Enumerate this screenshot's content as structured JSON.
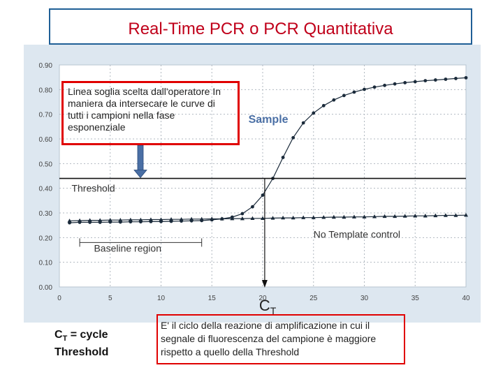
{
  "page": {
    "title": "Real-Time PCR o PCR Quantitativa",
    "annotation": "Linea soglia scelta dall'operatore In maniera da intersecare le curve di tutti i campioni nella fase esponenziale",
    "ct_definition": {
      "main": "C",
      "sub": "T",
      "rest": " = cycle",
      "line2": "Threshold"
    },
    "definition": "E' il ciclo della reazione di amplificazione in cui il segnale di fluorescenza del campione è maggiore rispetto a quello della Threshold"
  },
  "colors": {
    "title": "#c0001a",
    "title_border": "#1f5f96",
    "red_box": "#e00000",
    "plot_bg": "#ffffff",
    "outer_bg": "#dde7f0",
    "curve": "#1a2a3a",
    "sample_label": "#4a6fa5",
    "arrow": "#4a6fa5"
  },
  "chart_data": {
    "type": "line",
    "xlim": [
      0,
      40
    ],
    "ylim": [
      0,
      0.9
    ],
    "xticks": [
      "0",
      "5",
      "10",
      "15",
      "20",
      "25",
      "30",
      "35",
      "40"
    ],
    "yticks": [
      "0.00",
      "0.10",
      "0.20",
      "0.30",
      "0.40",
      "0.50",
      "0.60",
      "0.70",
      "0.80",
      "0.90"
    ],
    "grid": true,
    "series": [
      {
        "name": "Sample",
        "marker": "circle",
        "x": [
          1,
          2,
          3,
          4,
          5,
          6,
          7,
          8,
          9,
          10,
          11,
          12,
          13,
          14,
          15,
          16,
          17,
          18,
          19,
          20,
          21,
          22,
          23,
          24,
          25,
          26,
          27,
          28,
          29,
          30,
          31,
          32,
          33,
          34,
          35,
          36,
          37,
          38,
          39,
          40
        ],
        "y": [
          0.26,
          0.262,
          0.262,
          0.262,
          0.263,
          0.263,
          0.264,
          0.264,
          0.265,
          0.265,
          0.266,
          0.267,
          0.268,
          0.269,
          0.272,
          0.276,
          0.283,
          0.297,
          0.325,
          0.372,
          0.44,
          0.525,
          0.605,
          0.665,
          0.705,
          0.735,
          0.758,
          0.776,
          0.79,
          0.801,
          0.81,
          0.817,
          0.823,
          0.828,
          0.832,
          0.836,
          0.839,
          0.842,
          0.845,
          0.848
        ]
      },
      {
        "name": "No Template control",
        "marker": "triangle",
        "x": [
          1,
          2,
          3,
          4,
          5,
          6,
          7,
          8,
          9,
          10,
          11,
          12,
          13,
          14,
          15,
          16,
          17,
          18,
          19,
          20,
          21,
          22,
          23,
          24,
          25,
          26,
          27,
          28,
          29,
          30,
          31,
          32,
          33,
          34,
          35,
          36,
          37,
          38,
          39,
          40
        ],
        "y": [
          0.268,
          0.269,
          0.27,
          0.27,
          0.271,
          0.271,
          0.272,
          0.272,
          0.273,
          0.273,
          0.274,
          0.274,
          0.275,
          0.275,
          0.276,
          0.276,
          0.277,
          0.277,
          0.278,
          0.278,
          0.279,
          0.28,
          0.28,
          0.281,
          0.281,
          0.282,
          0.283,
          0.283,
          0.284,
          0.284,
          0.285,
          0.286,
          0.286,
          0.287,
          0.288,
          0.288,
          0.289,
          0.29,
          0.29,
          0.291
        ]
      }
    ],
    "threshold": {
      "label": "Threshold",
      "y": 0.44
    },
    "baseline": {
      "label": "Baseline region",
      "x_start": 2,
      "x_end": 14,
      "y": 0.18
    },
    "ct": {
      "label_main": "C",
      "label_sub": "T",
      "x": 20.2
    },
    "annotations": {
      "sample": "Sample",
      "ntc": "No Template control"
    }
  }
}
